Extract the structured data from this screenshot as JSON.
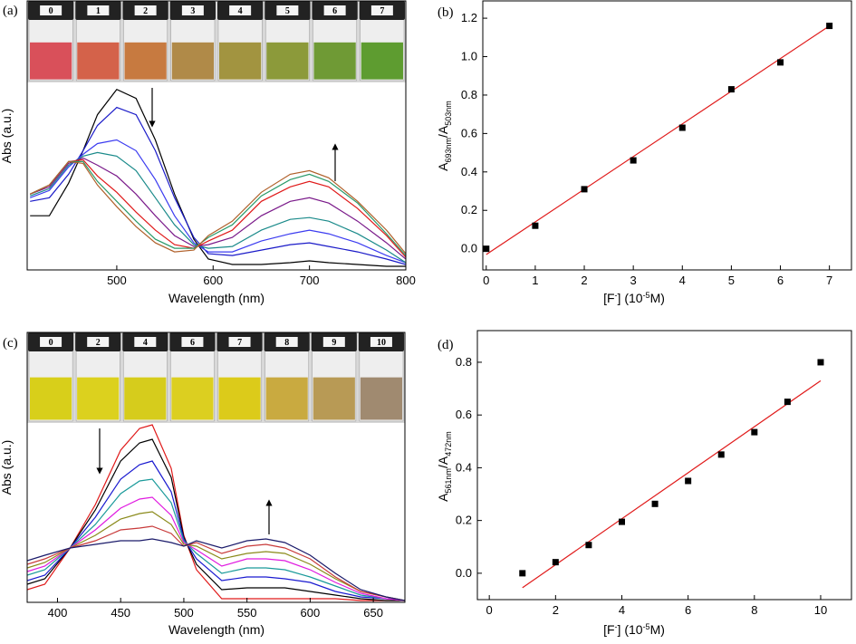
{
  "chart_data": [
    {
      "type": "line",
      "panel_label": "(a)",
      "vials": [
        "0",
        "1",
        "2",
        "3",
        "4",
        "5",
        "6",
        "7"
      ],
      "xlabel": "Wavelength (nm)",
      "ylabel": "Abs (a.u.)",
      "xlim": [
        407,
        800
      ],
      "ylim": [
        0,
        1.49
      ],
      "xticks": [
        500,
        600,
        700,
        800
      ],
      "x": [
        410,
        430,
        450,
        465,
        480,
        500,
        520,
        540,
        560,
        580,
        595,
        620,
        650,
        680,
        700,
        720,
        750,
        780,
        800
      ],
      "series": [
        {
          "color": "#000000",
          "values": [
            0.3,
            0.3,
            0.48,
            0.66,
            0.86,
            1.0,
            0.95,
            0.72,
            0.42,
            0.17,
            0.06,
            0.03,
            0.03,
            0.04,
            0.05,
            0.04,
            0.03,
            0.02,
            0.02
          ]
        },
        {
          "color": "#1a1ac8",
          "values": [
            0.38,
            0.4,
            0.53,
            0.66,
            0.8,
            0.9,
            0.86,
            0.66,
            0.4,
            0.18,
            0.09,
            0.08,
            0.11,
            0.14,
            0.15,
            0.13,
            0.1,
            0.06,
            0.03
          ]
        },
        {
          "color": "#3c3cf0",
          "values": [
            0.4,
            0.44,
            0.57,
            0.64,
            0.7,
            0.72,
            0.66,
            0.5,
            0.3,
            0.15,
            0.1,
            0.1,
            0.16,
            0.2,
            0.22,
            0.2,
            0.15,
            0.08,
            0.04
          ]
        },
        {
          "color": "#1a8a8a",
          "values": [
            0.41,
            0.45,
            0.58,
            0.63,
            0.65,
            0.63,
            0.55,
            0.4,
            0.25,
            0.14,
            0.12,
            0.13,
            0.22,
            0.28,
            0.29,
            0.27,
            0.2,
            0.11,
            0.04
          ]
        },
        {
          "color": "#7a1a8a",
          "values": [
            0.42,
            0.46,
            0.59,
            0.62,
            0.58,
            0.52,
            0.42,
            0.3,
            0.19,
            0.13,
            0.14,
            0.18,
            0.3,
            0.38,
            0.4,
            0.37,
            0.27,
            0.15,
            0.06
          ]
        },
        {
          "color": "#e01a1a",
          "values": [
            0.42,
            0.47,
            0.6,
            0.61,
            0.52,
            0.43,
            0.32,
            0.22,
            0.14,
            0.12,
            0.16,
            0.22,
            0.38,
            0.46,
            0.49,
            0.46,
            0.34,
            0.19,
            0.07
          ]
        },
        {
          "color": "#2a9a6a",
          "values": [
            0.42,
            0.47,
            0.6,
            0.6,
            0.49,
            0.38,
            0.27,
            0.17,
            0.12,
            0.12,
            0.18,
            0.25,
            0.41,
            0.5,
            0.53,
            0.49,
            0.37,
            0.2,
            0.08
          ]
        },
        {
          "color": "#b0602a",
          "values": [
            0.42,
            0.47,
            0.6,
            0.59,
            0.47,
            0.35,
            0.24,
            0.15,
            0.1,
            0.11,
            0.19,
            0.27,
            0.43,
            0.53,
            0.55,
            0.51,
            0.38,
            0.22,
            0.09
          ]
        }
      ]
    },
    {
      "type": "scatter",
      "panel_label": "(b)",
      "xlabel_parts": [
        "[F",
        "-",
        "] (10",
        "-5",
        "M)"
      ],
      "ylabel_parts": [
        "A",
        "693nm",
        "/A",
        "503nm"
      ],
      "xlim": [
        -0.07,
        7.45
      ],
      "ylim": [
        -0.11,
        1.29
      ],
      "xticks": [
        0,
        1,
        2,
        3,
        4,
        5,
        6,
        7
      ],
      "yticks": [
        {
          "value": 0,
          "label": "0.0"
        },
        {
          "value": 0.2,
          "label": "0.2"
        },
        {
          "value": 0.4,
          "label": "0.4"
        },
        {
          "value": 0.6,
          "label": "0.6"
        },
        {
          "value": 0.8,
          "label": "0.8"
        },
        {
          "value": 1,
          "label": "1.0"
        },
        {
          "value": 1.2,
          "label": "1.2"
        }
      ],
      "x": [
        0,
        1,
        2,
        3,
        4,
        5,
        6,
        7
      ],
      "values": [
        0.0,
        0.12,
        0.31,
        0.46,
        0.63,
        0.83,
        0.97,
        1.16
      ],
      "color": "#000000",
      "fit": {
        "color": "#e01a1a",
        "x": [
          0,
          7
        ],
        "y": [
          -0.03,
          1.16
        ]
      }
    },
    {
      "type": "line",
      "panel_label": "(c)",
      "vials": [
        "0",
        "2",
        "4",
        "6",
        "7",
        "8",
        "9",
        "10"
      ],
      "xlabel": "Wavelength (nm)",
      "ylabel": "Abs (a.u.)",
      "xlim": [
        376,
        675
      ],
      "ylim": [
        0,
        1.49
      ],
      "xticks": [
        400,
        450,
        500,
        550,
        600,
        650
      ],
      "x": [
        376,
        390,
        410,
        430,
        450,
        465,
        475,
        490,
        500,
        510,
        530,
        550,
        565,
        580,
        600,
        620,
        640,
        660,
        675
      ],
      "series": [
        {
          "color": "#e01a1a",
          "values": [
            0.07,
            0.1,
            0.3,
            0.54,
            0.84,
            0.96,
            0.98,
            0.74,
            0.37,
            0.18,
            0.02,
            0.02,
            0.02,
            0.02,
            0.02,
            0.02,
            0.01,
            0.01,
            0.01
          ]
        },
        {
          "color": "#000000",
          "values": [
            0.1,
            0.13,
            0.3,
            0.51,
            0.78,
            0.88,
            0.9,
            0.69,
            0.36,
            0.21,
            0.07,
            0.08,
            0.08,
            0.08,
            0.06,
            0.04,
            0.02,
            0.01,
            0.01
          ]
        },
        {
          "color": "#1a1ad0",
          "values": [
            0.12,
            0.15,
            0.3,
            0.47,
            0.68,
            0.76,
            0.78,
            0.61,
            0.35,
            0.24,
            0.12,
            0.14,
            0.14,
            0.13,
            0.11,
            0.06,
            0.03,
            0.02,
            0.01
          ]
        },
        {
          "color": "#1a9a9a",
          "values": [
            0.15,
            0.18,
            0.3,
            0.43,
            0.6,
            0.67,
            0.68,
            0.55,
            0.34,
            0.27,
            0.16,
            0.19,
            0.19,
            0.18,
            0.14,
            0.09,
            0.04,
            0.02,
            0.01
          ]
        },
        {
          "color": "#e01ae0",
          "values": [
            0.17,
            0.2,
            0.3,
            0.4,
            0.52,
            0.57,
            0.58,
            0.48,
            0.33,
            0.29,
            0.2,
            0.24,
            0.24,
            0.23,
            0.18,
            0.11,
            0.05,
            0.02,
            0.01
          ]
        },
        {
          "color": "#8a8a1a",
          "values": [
            0.19,
            0.22,
            0.3,
            0.37,
            0.46,
            0.49,
            0.5,
            0.43,
            0.32,
            0.31,
            0.24,
            0.27,
            0.28,
            0.27,
            0.21,
            0.13,
            0.06,
            0.03,
            0.01
          ]
        },
        {
          "color": "#c83a3a",
          "values": [
            0.21,
            0.24,
            0.3,
            0.34,
            0.4,
            0.41,
            0.42,
            0.38,
            0.31,
            0.33,
            0.27,
            0.31,
            0.32,
            0.3,
            0.24,
            0.14,
            0.06,
            0.03,
            0.01
          ]
        },
        {
          "color": "#1a1a6a",
          "values": [
            0.23,
            0.26,
            0.3,
            0.32,
            0.34,
            0.34,
            0.35,
            0.33,
            0.31,
            0.34,
            0.3,
            0.34,
            0.35,
            0.33,
            0.26,
            0.16,
            0.07,
            0.03,
            0.01
          ]
        }
      ]
    },
    {
      "type": "scatter",
      "panel_label": "(d)",
      "xlabel_parts": [
        "[F",
        "-",
        "] (10",
        "-5",
        "M)"
      ],
      "ylabel_parts": [
        "A",
        "561nm",
        "/A",
        "472nm"
      ],
      "xlim": [
        -0.36,
        10.93
      ],
      "ylim": [
        -0.1,
        0.92
      ],
      "xticks": [
        0,
        2,
        4,
        6,
        8,
        10
      ],
      "yticks": [
        {
          "value": 0,
          "label": "0.0"
        },
        {
          "value": 0.2,
          "label": "0.2"
        },
        {
          "value": 0.4,
          "label": "0.4"
        },
        {
          "value": 0.6,
          "label": "0.6"
        },
        {
          "value": 0.8,
          "label": "0.8"
        }
      ],
      "x": [
        1,
        2,
        3,
        4,
        5,
        6,
        7,
        8,
        9,
        10
      ],
      "values": [
        0.0,
        0.042,
        0.107,
        0.195,
        0.263,
        0.35,
        0.45,
        0.535,
        0.65,
        0.8
      ],
      "color": "#000000",
      "fit": {
        "color": "#e01a1a",
        "x": [
          1,
          10
        ],
        "y": [
          -0.055,
          0.73
        ]
      }
    }
  ]
}
